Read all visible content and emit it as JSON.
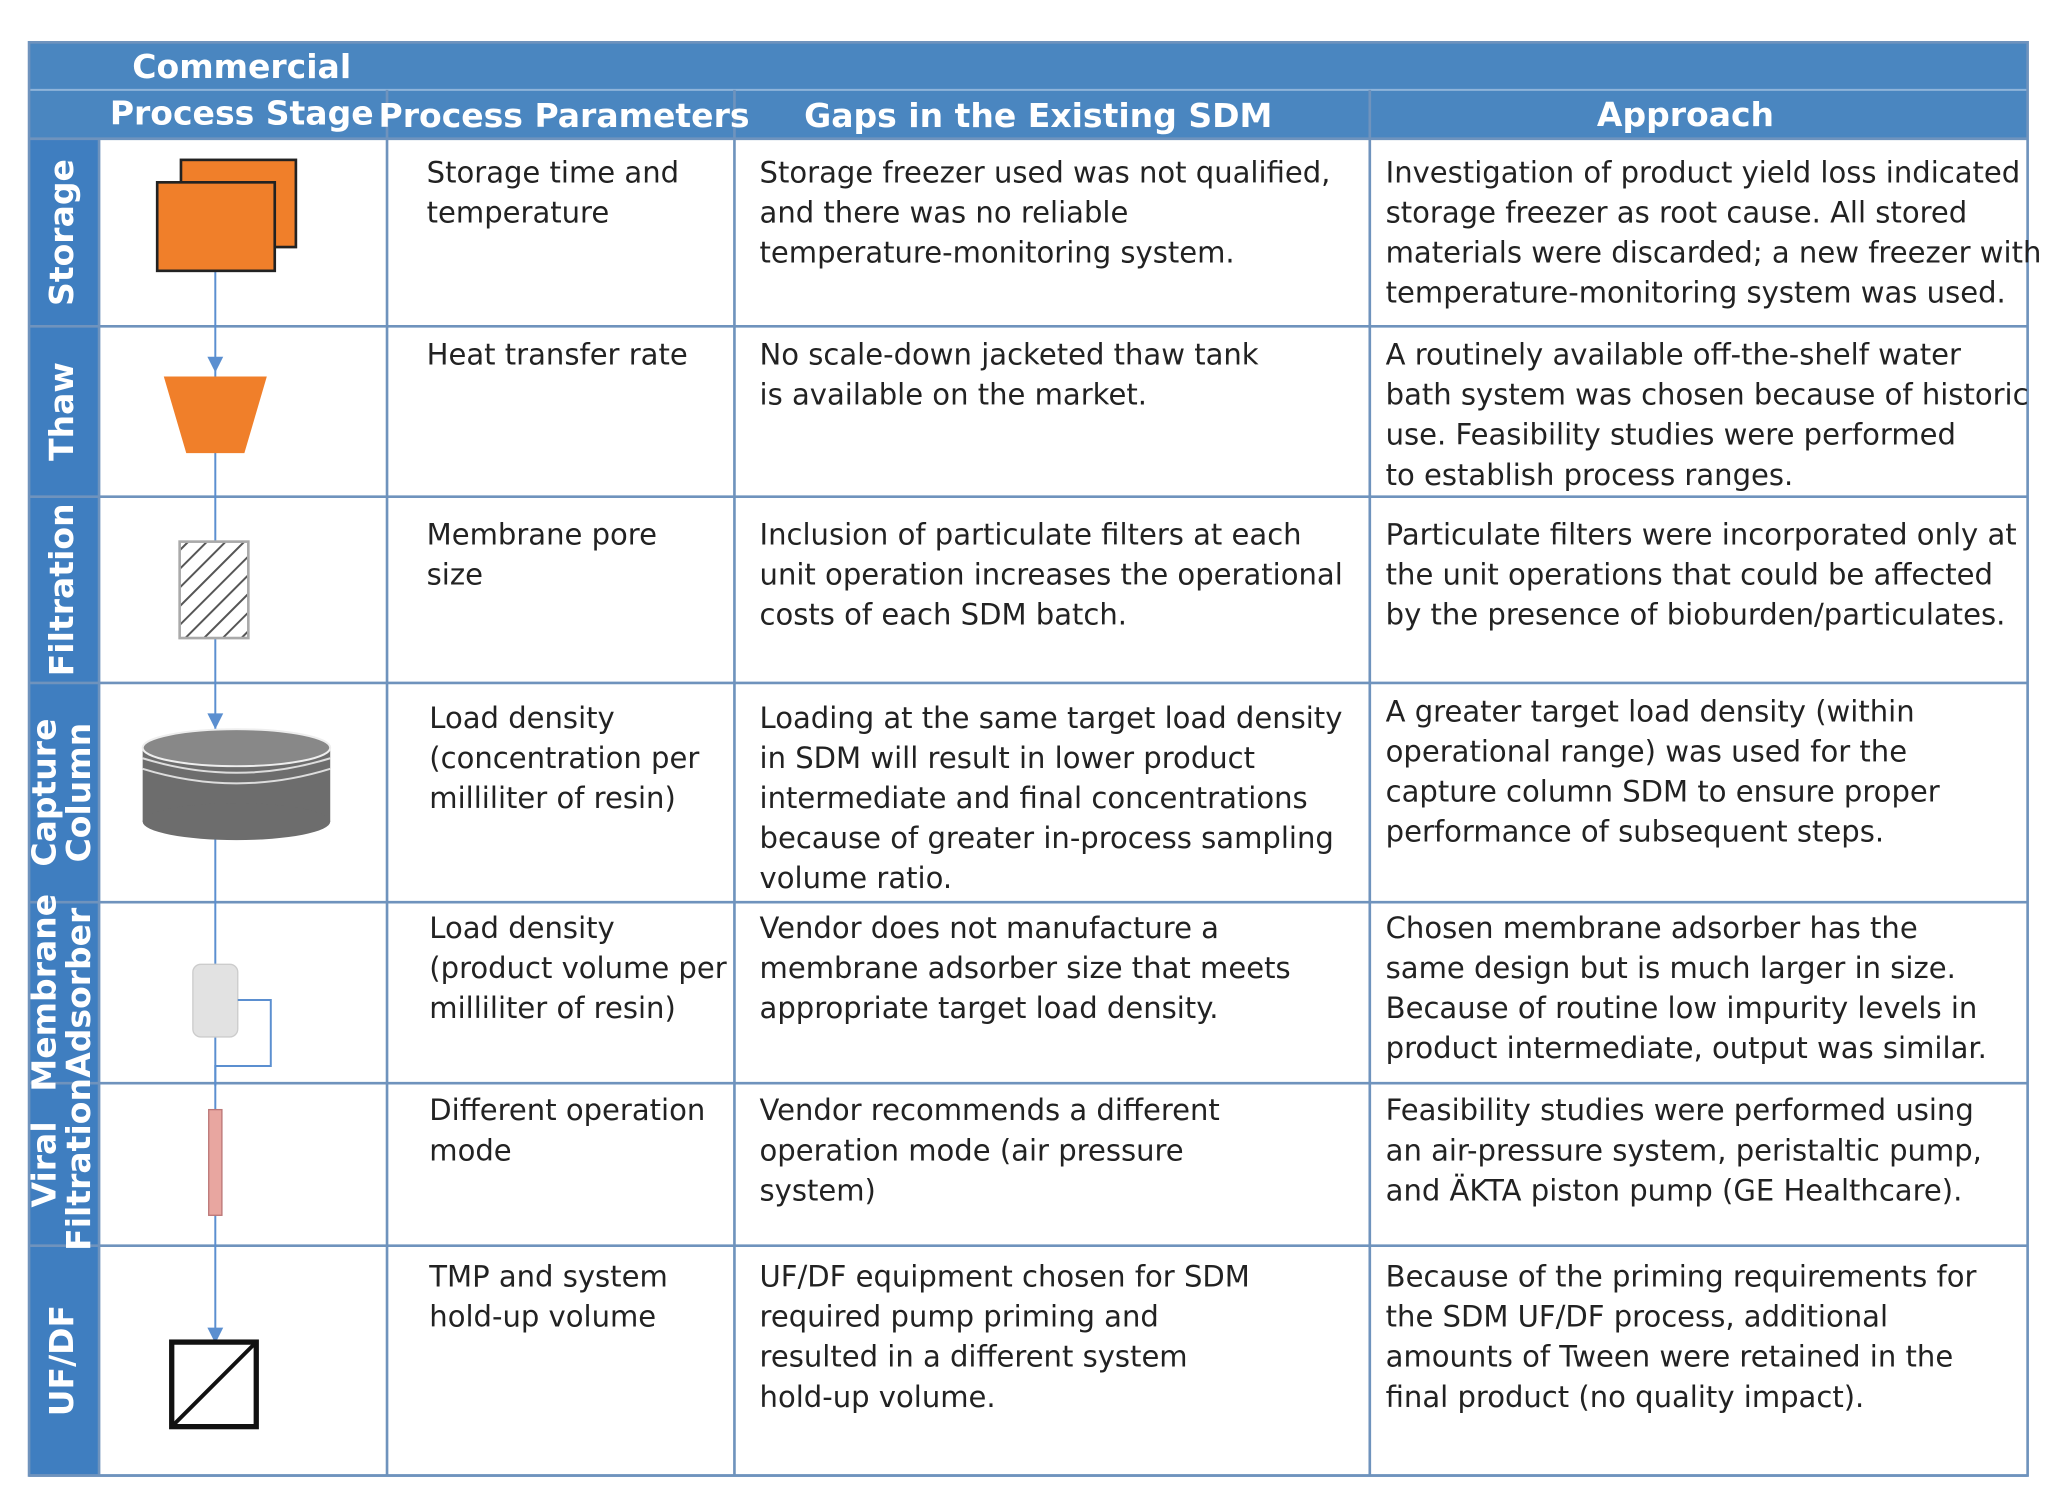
{
  "table": {
    "header": [
      [
        "Commercial",
        "Process Stage"
      ],
      [
        "Process Parameters"
      ],
      [
        "Gaps in the Existing SDM"
      ],
      [
        "Approach"
      ]
    ],
    "rows": [
      {
        "stage": [
          "Storage"
        ],
        "params": [
          "Storage time and",
          "temperature"
        ],
        "gaps": [
          "Storage freezer used was not qualified,",
          "and there was no reliable",
          "temperature-monitoring system."
        ],
        "approach": [
          "Investigation of product yield loss indicated",
          "storage freezer as root cause. All stored",
          "materials were discarded; a new freezer with",
          "temperature-monitoring system was used."
        ]
      },
      {
        "stage": [
          "Thaw"
        ],
        "params": [
          "Heat transfer rate"
        ],
        "gaps": [
          "No scale-down jacketed thaw tank",
          "is available on the market."
        ],
        "approach": [
          "A routinely available off-the-shelf water",
          "bath system was chosen because of  historic",
          "use. Feasibility studies were performed",
          "to establish process ranges."
        ]
      },
      {
        "stage": [
          "Filtration"
        ],
        "params": [
          "Membrane pore",
          "size"
        ],
        "gaps": [
          "Inclusion of particulate filters at each",
          "unit operation increases the operational",
          "costs of each SDM batch."
        ],
        "approach": [
          "Particulate filters were incorporated only at",
          "the unit operations that could be affected",
          "by the presence of bioburden/particulates."
        ]
      },
      {
        "stage": [
          "Capture",
          "Column"
        ],
        "params": [
          "Load density",
          "(concentration per",
          "milliliter of resin)"
        ],
        "gaps": [
          "Loading at the same target load density",
          "in SDM will result in lower product",
          "intermediate and final concentrations",
          "because of greater in-process sampling",
          "volume ratio."
        ],
        "approach": [
          "A greater target load density (within",
          "operational range) was used for the",
          "capture column SDM to ensure proper",
          "performance of subsequent steps."
        ]
      },
      {
        "stage": [
          "Membrane",
          "Adsorber"
        ],
        "params": [
          "Load density",
          "(product volume per",
          "milliliter of resin)"
        ],
        "gaps": [
          "Vendor does not manufacture a",
          "membrane adsorber size that meets",
          "appropriate target load density."
        ],
        "approach": [
          "Chosen membrane adsorber has the",
          "same design but is much larger in size.",
          "Because of routine low impurity levels in",
          "product intermediate, output was similar."
        ]
      },
      {
        "stage": [
          "Viral",
          "Filtration"
        ],
        "params": [
          "Different operation",
          "mode"
        ],
        "gaps": [
          "Vendor recommends a different",
          "operation mode (air pressure",
          "system)"
        ],
        "approach": [
          "Feasibility studies were performed using",
          "an air-pressure system, peristaltic pump,",
          "and ÄKTA piston pump (GE Healthcare)."
        ]
      },
      {
        "stage": [
          "UF/DF"
        ],
        "params": [
          "TMP and system",
          "hold-up volume"
        ],
        "gaps": [
          "UF/DF equipment chosen for SDM",
          "required pump priming and",
          "resulted in a different system",
          "hold-up volume."
        ],
        "approach": [
          "Because of the priming requirements for",
          "the SDM UF/DF process, additional",
          "amounts of Tween were retained in the",
          "final product (no quality impact)."
        ]
      }
    ]
  }
}
